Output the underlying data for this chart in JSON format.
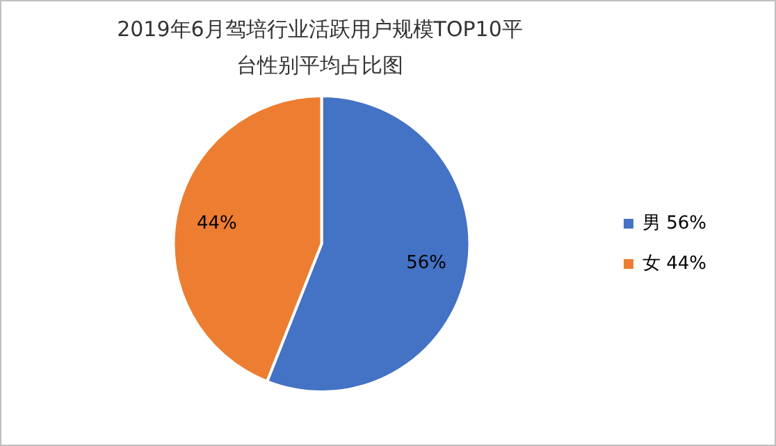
{
  "chart_data": {
    "type": "pie",
    "title": "2019年6月驾培行业活跃用户规模TOP10平台性别平均占比图",
    "categories": [
      "男",
      "女"
    ],
    "values": [
      56,
      44
    ],
    "colors": [
      "#4472c4",
      "#ed7d31"
    ],
    "value_labels": [
      "56%",
      "44%"
    ],
    "legend": "right"
  }
}
